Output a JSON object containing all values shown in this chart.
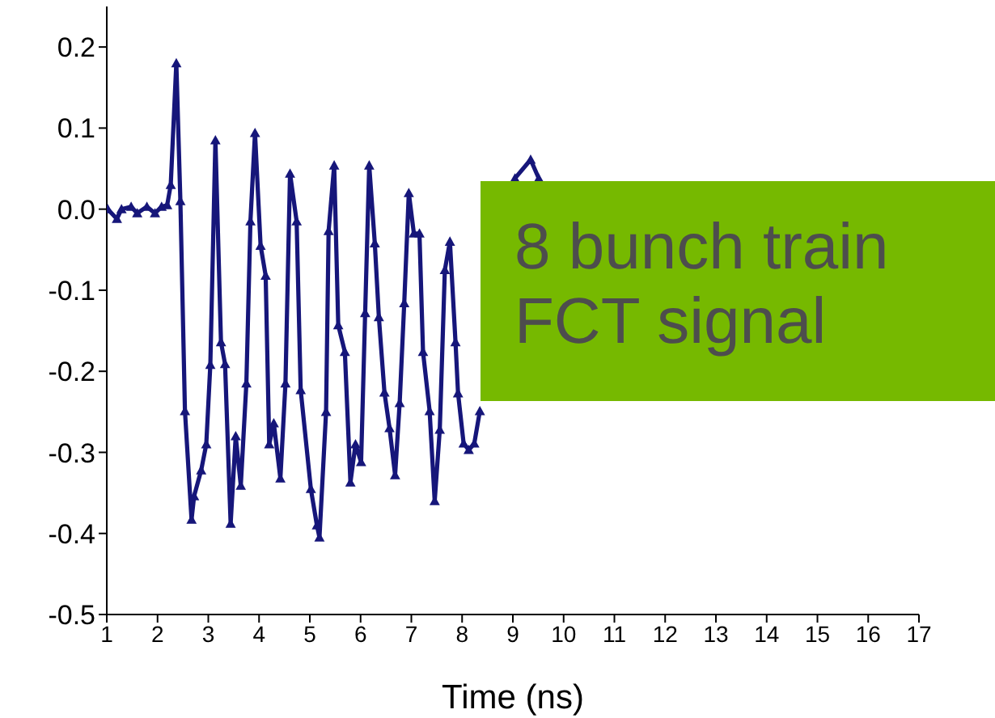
{
  "chart_data": {
    "type": "line",
    "xlabel": "Time (ns)",
    "annotations": [
      "8 bunch train FCT signal"
    ],
    "xlim": [
      1,
      17
    ],
    "xticks": [
      1,
      2,
      3,
      4,
      5,
      6,
      7,
      8,
      9,
      10,
      11,
      12,
      13,
      14,
      15,
      16,
      17
    ],
    "ylim": [
      -0.5,
      0.25
    ],
    "yticks": [
      -0.5,
      -0.4,
      -0.3,
      -0.2,
      -0.1,
      {
        "value": 0,
        "label": "0.0"
      },
      0.1,
      0.2
    ],
    "grid": false,
    "legend": false,
    "marker": "triangle",
    "line_style": "solid",
    "series": [
      {
        "color": "#16167a",
        "x": [
          1.02,
          1.2,
          1.29,
          1.48,
          1.6,
          1.79,
          1.95,
          2.08,
          2.19,
          2.26,
          2.37,
          2.45,
          2.54,
          2.67,
          2.72,
          2.86,
          2.96,
          3.04,
          3.14,
          3.25,
          3.33,
          3.44,
          3.54,
          3.64,
          3.75,
          3.83,
          3.92,
          4.03,
          4.13,
          4.2,
          4.29,
          4.42,
          4.52,
          4.61,
          4.74,
          4.82,
          5.02,
          5.14,
          5.19,
          5.32,
          5.37,
          5.48,
          5.56,
          5.69,
          5.8,
          5.9,
          6.01,
          6.09,
          6.17,
          6.28,
          6.36,
          6.47,
          6.57,
          6.68,
          6.77,
          6.86,
          6.95,
          7.05,
          7.16,
          7.23,
          7.36,
          7.46,
          7.56,
          7.66,
          7.76,
          7.87,
          7.92,
          8.03,
          8.13,
          8.24,
          8.35,
          8.6,
          9.04,
          9.35,
          9.51
        ],
        "values": [
          0,
          -0.012,
          0,
          0.003,
          -0.005,
          0.003,
          -0.005,
          0.003,
          0.005,
          0.03,
          0.18,
          0.01,
          -0.249,
          -0.383,
          -0.354,
          -0.322,
          -0.29,
          -0.192,
          0.085,
          -0.164,
          -0.191,
          -0.388,
          -0.28,
          -0.341,
          -0.215,
          -0.015,
          0.094,
          -0.045,
          -0.082,
          -0.29,
          -0.264,
          -0.332,
          -0.215,
          0.044,
          -0.015,
          -0.223,
          -0.345,
          -0.39,
          -0.405,
          -0.25,
          -0.027,
          0.054,
          -0.143,
          -0.176,
          -0.337,
          -0.29,
          -0.312,
          -0.128,
          0.054,
          -0.042,
          -0.133,
          -0.226,
          -0.27,
          -0.328,
          -0.239,
          -0.116,
          0.02,
          -0.03,
          -0.03,
          -0.176,
          -0.249,
          -0.36,
          -0.272,
          -0.075,
          -0.04,
          -0.164,
          -0.227,
          -0.289,
          -0.297,
          -0.289,
          -0.249,
          null,
          0.038,
          0.061,
          0.038
        ]
      }
    ]
  }
}
